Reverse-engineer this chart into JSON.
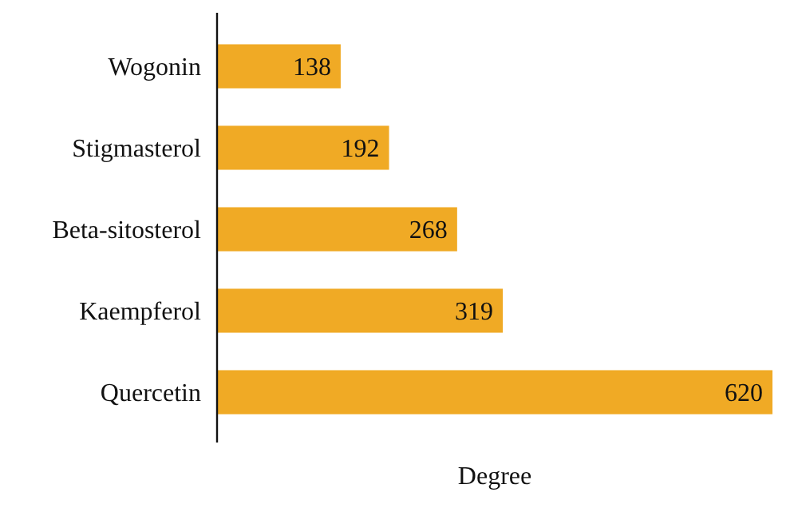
{
  "chart_data": {
    "type": "bar",
    "orientation": "horizontal",
    "xlabel": "Degree",
    "categories": [
      "Wogonin",
      "Stigmasterol",
      "Beta-sitosterol",
      "Kaempferol",
      "Quercetin"
    ],
    "values": [
      138,
      192,
      268,
      319,
      620
    ],
    "color": "#f0aa25",
    "data_labels": true
  }
}
